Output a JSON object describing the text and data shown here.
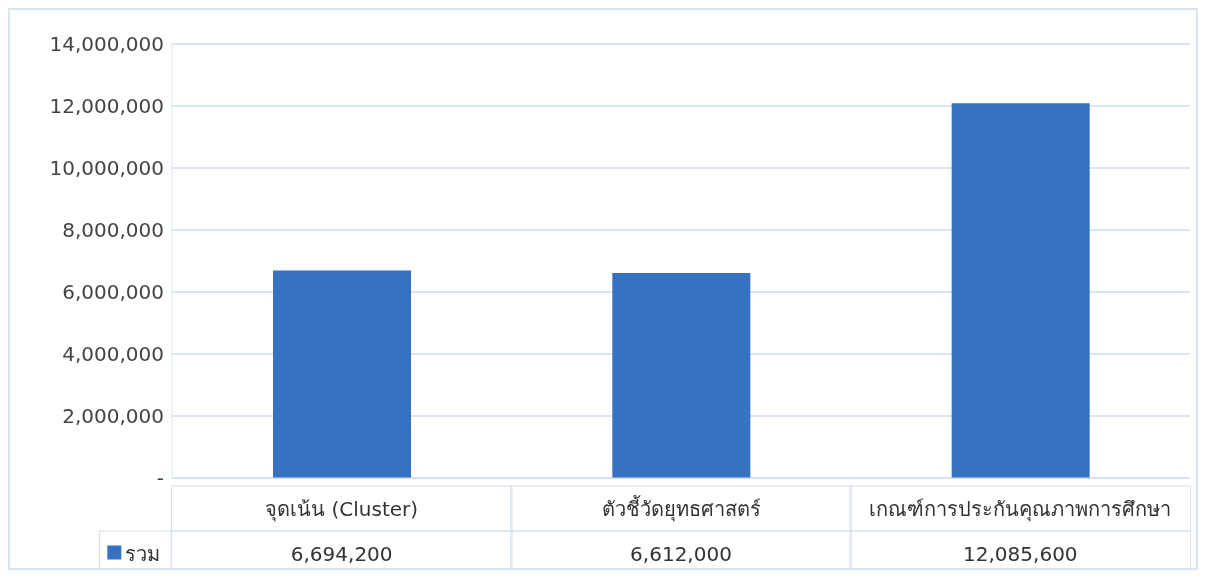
{
  "chart_data": {
    "type": "bar",
    "categories": [
      "จุดเน้น (Cluster)",
      "ตัวชี้วัดยุทธศาสตร์",
      "เกณฑ์การประกันคุณภาพการศึกษา"
    ],
    "series": [
      {
        "name": "รวม",
        "color": "#3672bf",
        "values": [
          6694200,
          6612000,
          12085600
        ],
        "value_labels": [
          "6,694,200",
          "6,612,000",
          "12,085,600"
        ]
      }
    ],
    "ylim": [
      0,
      14000000
    ],
    "yticks": [
      {
        "value": 0,
        "label": "-"
      },
      {
        "value": 2000000,
        "label": "2,000,000"
      },
      {
        "value": 4000000,
        "label": "4,000,000"
      },
      {
        "value": 6000000,
        "label": "6,000,000"
      },
      {
        "value": 8000000,
        "label": "8,000,000"
      },
      {
        "value": 10000000,
        "label": "10,000,000"
      },
      {
        "value": 12000000,
        "label": "12,000,000"
      },
      {
        "value": 14000000,
        "label": "14,000,000"
      }
    ],
    "grid": "y",
    "legend": "bottom left"
  }
}
